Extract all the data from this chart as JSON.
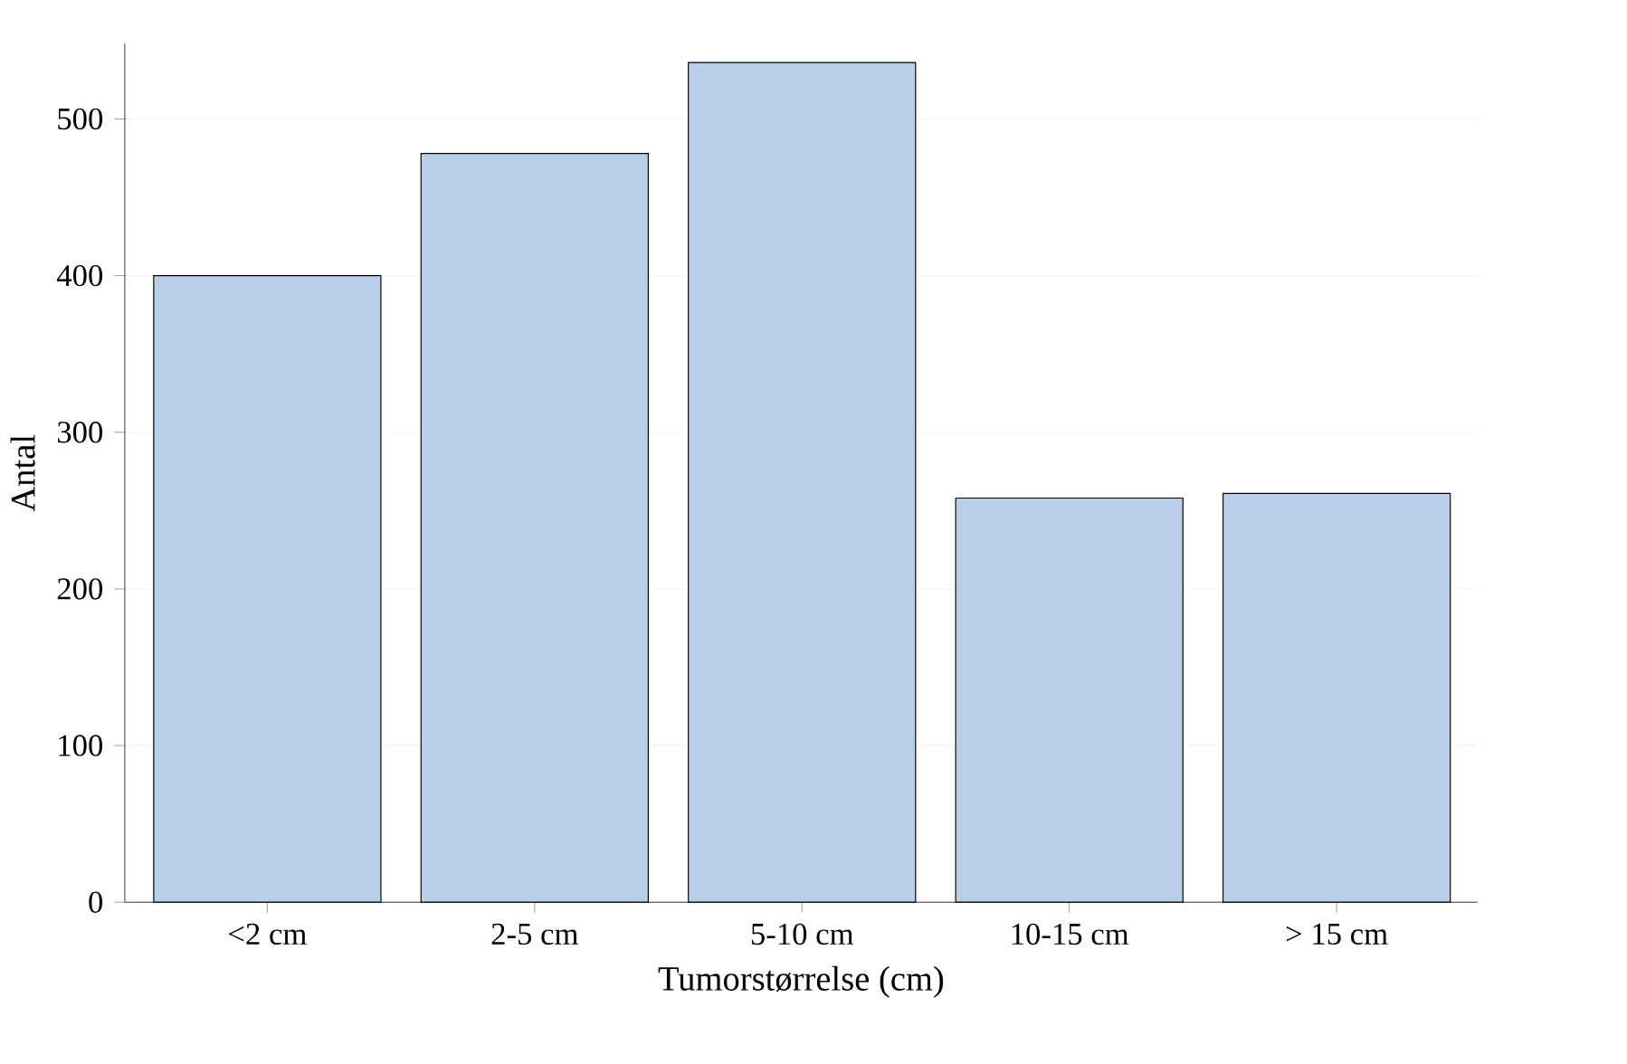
{
  "chart_data": {
    "type": "bar",
    "xlabel": "Tumorstørrelse (cm)",
    "ylabel": "Antal",
    "categories": [
      "<2 cm",
      "2-5 cm",
      "5-10 cm",
      "10-15 cm",
      "> 15 cm"
    ],
    "values": [
      400,
      478,
      536,
      258,
      261
    ],
    "color": "#b9cfe7",
    "ylim": [
      0,
      548
    ],
    "yticks": [
      0,
      100,
      200,
      300,
      400,
      500
    ],
    "grid": "y"
  }
}
